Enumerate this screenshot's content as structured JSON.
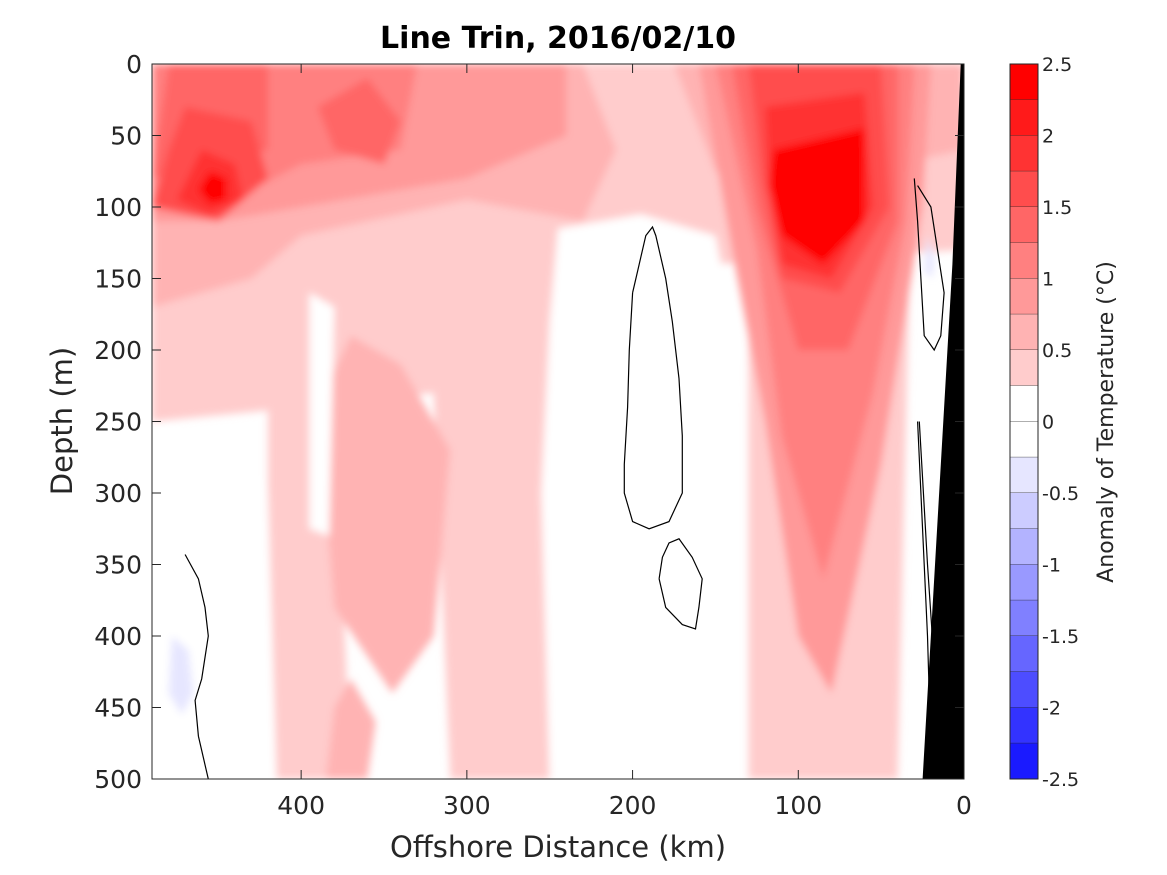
{
  "chart_data": {
    "type": "heatmap",
    "subtype": "filled-contour-section",
    "title": "Line Trin, 2016/02/10",
    "xlabel": "Offshore Distance (km)",
    "ylabel": "Depth (m)",
    "xlim": [
      490,
      0
    ],
    "x_reversed": true,
    "ylim": [
      0,
      500
    ],
    "y_reversed": true,
    "xticks": [
      400,
      300,
      200,
      100,
      0
    ],
    "xtick_labels": [
      "400",
      "300",
      "200",
      "100",
      "0"
    ],
    "yticks": [
      0,
      50,
      100,
      150,
      200,
      250,
      300,
      350,
      400,
      450,
      500
    ],
    "ytick_labels": [
      "0",
      "50",
      "100",
      "150",
      "200",
      "250",
      "300",
      "350",
      "400",
      "450",
      "500"
    ],
    "colorbar": {
      "label": "Anomaly of Temperature (°C)",
      "range": [
        -2.5,
        2.5
      ],
      "levels": [
        -2.5,
        -2.25,
        -2,
        -1.75,
        -1.5,
        -1.25,
        -1,
        -0.75,
        -0.5,
        -0.25,
        0,
        0.25,
        0.5,
        0.75,
        1,
        1.25,
        1.5,
        1.75,
        2,
        2.25,
        2.5
      ],
      "ticks": [
        2.5,
        2,
        1.5,
        1,
        0.5,
        0,
        -0.5,
        -1,
        -1.5,
        -2,
        -2.5
      ],
      "tick_labels": [
        "2.5",
        "2",
        "1.5",
        "1",
        "0.5",
        "0",
        "-0.5",
        "-1",
        "-1.5",
        "-2",
        "-2.5"
      ],
      "colors": [
        "#0000ff",
        "#1a1aff",
        "#3333ff",
        "#4d4dff",
        "#6666ff",
        "#8080ff",
        "#9999ff",
        "#b3b3ff",
        "#ccccff",
        "#e6e6ff",
        "#ffffff",
        "#ffffff",
        "#ffe6e6",
        "#ffcccc",
        "#ffb3b3",
        "#ff9999",
        "#ff8080",
        "#ff6666",
        "#ff4d4d",
        "#ff3333",
        "#ff1a1a",
        "#ff0000"
      ]
    },
    "features": [
      {
        "name": "warm core near 90 km",
        "anomaly": 2.5,
        "x_range_km": [
          130,
          30
        ],
        "depth_range_m": [
          0,
          500
        ]
      },
      {
        "name": "warm patch near 450 km",
        "anomaly": 2.5,
        "x_km": 450,
        "depth_m": 85
      },
      {
        "name": "near-surface warm layer",
        "anomaly": 1.5,
        "x_range_km": [
          490,
          0
        ],
        "depth_range_m": [
          0,
          130
        ]
      },
      {
        "name": "warm tongue near 340 km",
        "anomaly": 0.75,
        "x_range_km": [
          380,
          300
        ],
        "depth_range_m": [
          190,
          440
        ]
      },
      {
        "name": "neutral region near 210-150 km",
        "anomaly": 0.0,
        "x_range_km": [
          240,
          130
        ],
        "depth_range_m": [
          110,
          500
        ]
      },
      {
        "name": "weak cool patch",
        "anomaly": -0.5,
        "x_km": 470,
        "depth_m": 430
      },
      {
        "name": "weak cool patch nearshore",
        "anomaly": -0.5,
        "x_km": 20,
        "depth_m": 140
      }
    ],
    "zero_contours_km_depth": [
      [
        [
          200,
          160
        ],
        [
          202,
          200
        ],
        [
          203,
          240
        ],
        [
          205,
          280
        ],
        [
          205,
          300
        ],
        [
          200,
          320
        ],
        [
          190,
          325
        ],
        [
          178,
          320
        ],
        [
          170,
          300
        ],
        [
          170,
          260
        ],
        [
          172,
          220
        ],
        [
          176,
          180
        ],
        [
          180,
          150
        ],
        [
          186,
          120
        ],
        [
          188,
          114
        ],
        [
          192,
          120
        ],
        [
          196,
          140
        ],
        [
          200,
          160
        ]
      ],
      [
        [
          184,
          360
        ],
        [
          180,
          380
        ],
        [
          170,
          392
        ],
        [
          162,
          395
        ],
        [
          160,
          380
        ],
        [
          158,
          360
        ],
        [
          164,
          345
        ],
        [
          172,
          332
        ],
        [
          178,
          335
        ],
        [
          182,
          345
        ],
        [
          184,
          360
        ]
      ],
      [
        [
          470,
          343
        ],
        [
          462,
          360
        ],
        [
          458,
          380
        ],
        [
          456,
          400
        ],
        [
          460,
          430
        ],
        [
          464,
          445
        ],
        [
          462,
          470
        ],
        [
          458,
          490
        ],
        [
          456,
          500
        ]
      ],
      [
        [
          30,
          80
        ],
        [
          28,
          110
        ],
        [
          26,
          150
        ],
        [
          24,
          190
        ],
        [
          18,
          200
        ],
        [
          14,
          190
        ],
        [
          12,
          160
        ],
        [
          16,
          130
        ],
        [
          20,
          100
        ],
        [
          28,
          85
        ]
      ],
      [
        [
          28,
          250
        ],
        [
          26,
          300
        ],
        [
          24,
          350
        ],
        [
          22,
          400
        ],
        [
          21,
          440
        ],
        [
          20,
          470
        ],
        [
          18,
          480
        ],
        [
          15,
          470
        ],
        [
          18,
          420
        ],
        [
          22,
          350
        ],
        [
          25,
          290
        ],
        [
          27,
          250
        ]
      ]
    ],
    "land_mask_km_depth": [
      [
        0,
        0
      ],
      [
        0,
        500
      ],
      [
        25,
        500
      ],
      [
        7,
        140
      ],
      [
        2,
        0
      ]
    ]
  }
}
